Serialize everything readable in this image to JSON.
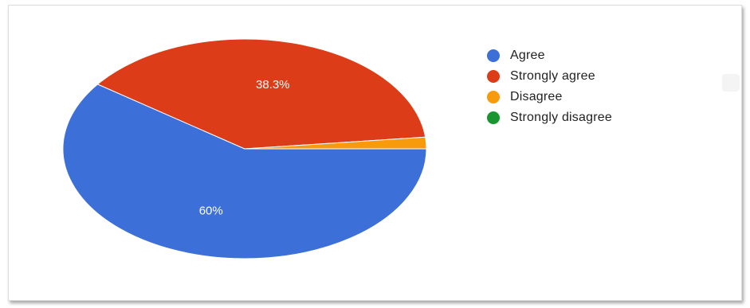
{
  "chart_data": {
    "type": "pie",
    "title": "",
    "slices": [
      {
        "label": "Agree",
        "value": 60,
        "display": "60%",
        "color": "#3c6fd8"
      },
      {
        "label": "Strongly agree",
        "value": 38.3,
        "display": "38.3%",
        "color": "#dc3d18"
      },
      {
        "label": "Disagree",
        "value": 1.7,
        "display": "",
        "color": "#f79a0c"
      },
      {
        "label": "Strongly disagree",
        "value": 0,
        "display": "",
        "color": "#19962f"
      }
    ],
    "legend_position": "right",
    "start_angle_deg": 0,
    "direction": "clockwise"
  },
  "icons": {
    "corner": "faint-toolbar-icon"
  }
}
